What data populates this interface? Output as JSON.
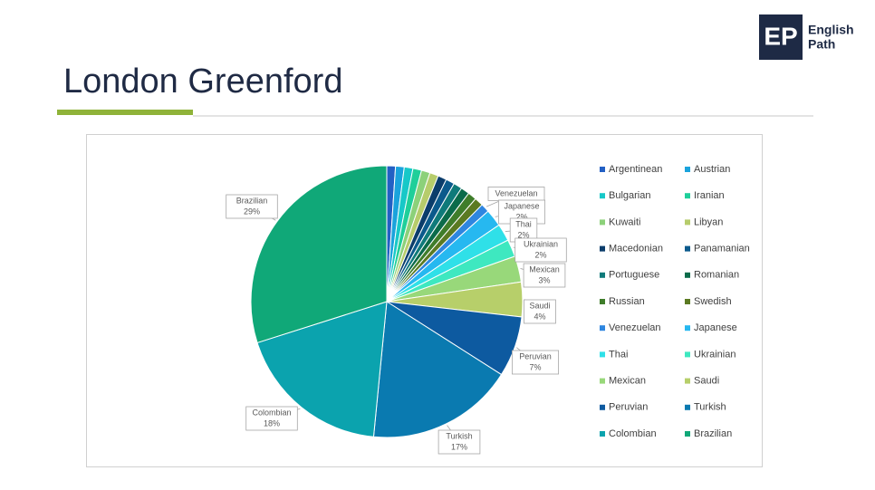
{
  "header": {
    "title": "London Greenford",
    "logo": "EP",
    "brand_line1": "English",
    "brand_line2": "Path"
  },
  "chart_data": {
    "type": "pie",
    "categories": [
      "Argentinean",
      "Austrian",
      "Bulgarian",
      "Iranian",
      "Kuwaiti",
      "Libyan",
      "Macedonian",
      "Panamanian",
      "Portuguese",
      "Romanian",
      "Russian",
      "Swedish",
      "Venezuelan",
      "Japanese",
      "Thai",
      "Ukrainian",
      "Mexican",
      "Saudi",
      "Peruvian",
      "Turkish",
      "Colombian",
      "Brazilian"
    ],
    "values": [
      1,
      1,
      1,
      1,
      1,
      1,
      1,
      1,
      1,
      1,
      1,
      1,
      1,
      2,
      2,
      2,
      3,
      4,
      7,
      17,
      18,
      29
    ],
    "value_labels": [
      null,
      null,
      null,
      null,
      null,
      null,
      null,
      null,
      null,
      null,
      null,
      null,
      null,
      "2%",
      "2%",
      "2%",
      "3%",
      "4%",
      "7%",
      "17%",
      "18%",
      "29%"
    ],
    "colors": [
      "#2360c4",
      "#1aa3dc",
      "#17c8c8",
      "#1fcf9a",
      "#8cd17a",
      "#b6cc6b",
      "#0b3d6b",
      "#0b5a8c",
      "#0f7a7a",
      "#0b6b4a",
      "#3f7d2a",
      "#5b7a22",
      "#2e86e0",
      "#26b8f0",
      "#2fe0e8",
      "#3ee8c0",
      "#98d87a",
      "#b7cf6a",
      "#0d5aa0",
      "#0a7ab0",
      "#0ba3ae",
      "#10a878"
    ],
    "legend": "right"
  }
}
